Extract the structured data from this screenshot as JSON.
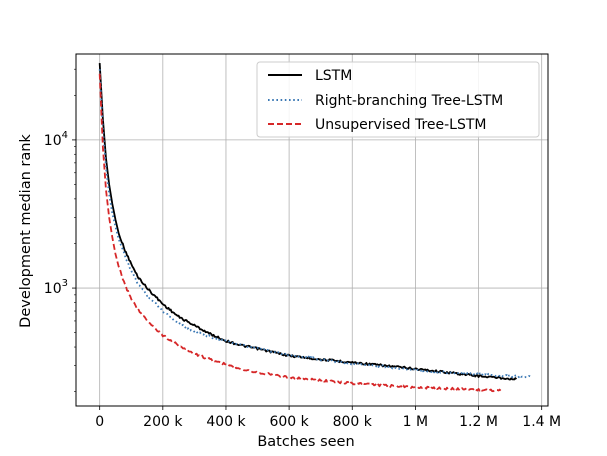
{
  "chart_data": {
    "type": "line",
    "xlabel": "Batches seen",
    "ylabel": "Development median rank",
    "xlim": [
      -75000,
      1420000
    ],
    "ylim": [
      160,
      38000
    ],
    "yscale": "log",
    "grid": true,
    "legend_position": "top-right",
    "x_ticks": [
      {
        "value": 0,
        "label": "0"
      },
      {
        "value": 200000,
        "label": "200 k"
      },
      {
        "value": 400000,
        "label": "400 k"
      },
      {
        "value": 600000,
        "label": "600 k"
      },
      {
        "value": 800000,
        "label": "800 k"
      },
      {
        "value": 1000000,
        "label": "1 M"
      },
      {
        "value": 1200000,
        "label": "1.2 M"
      },
      {
        "value": 1400000,
        "label": "1.4 M"
      }
    ],
    "y_ticks": [
      {
        "value": 1000,
        "base": "10",
        "exp": "3"
      },
      {
        "value": 10000,
        "base": "10",
        "exp": "4"
      }
    ],
    "series": [
      {
        "name": "LSTM",
        "color": "#000000",
        "dash": "solid",
        "x": [
          0,
          10000,
          20000,
          30000,
          40000,
          50000,
          60000,
          80000,
          100000,
          120000,
          150000,
          200000,
          250000,
          300000,
          350000,
          400000,
          450000,
          500000,
          600000,
          700000,
          800000,
          900000,
          1000000,
          1100000,
          1200000,
          1250000,
          1300000,
          1320000
        ],
        "y": [
          33000,
          14000,
          7500,
          5000,
          3700,
          2900,
          2350,
          1800,
          1450,
          1200,
          1000,
          780,
          640,
          560,
          490,
          440,
          410,
          390,
          350,
          330,
          315,
          300,
          285,
          270,
          255,
          250,
          245,
          243
        ]
      },
      {
        "name": "Right-branching Tree-LSTM",
        "color": "#3b78b4",
        "dash": "dotted",
        "x": [
          0,
          10000,
          20000,
          30000,
          40000,
          50000,
          60000,
          80000,
          100000,
          120000,
          150000,
          200000,
          250000,
          300000,
          350000,
          400000,
          450000,
          500000,
          600000,
          700000,
          800000,
          900000,
          1000000,
          1100000,
          1200000,
          1300000,
          1370000
        ],
        "y": [
          30000,
          12000,
          6500,
          4300,
          3200,
          2600,
          2150,
          1650,
          1300,
          1080,
          900,
          700,
          580,
          510,
          470,
          440,
          410,
          390,
          355,
          330,
          310,
          295,
          280,
          270,
          262,
          255,
          250
        ]
      },
      {
        "name": "Unsupervised Tree-LSTM",
        "color": "#d62728",
        "dash": "dashed",
        "x": [
          0,
          10000,
          20000,
          30000,
          40000,
          50000,
          60000,
          80000,
          100000,
          120000,
          150000,
          200000,
          250000,
          300000,
          350000,
          400000,
          450000,
          500000,
          600000,
          700000,
          800000,
          900000,
          1000000,
          1100000,
          1200000,
          1250000,
          1270000
        ],
        "y": [
          28000,
          9000,
          4600,
          3000,
          2200,
          1700,
          1400,
          1050,
          850,
          720,
          600,
          480,
          410,
          360,
          330,
          305,
          285,
          270,
          250,
          238,
          228,
          220,
          214,
          210,
          206,
          204,
          203
        ]
      }
    ]
  }
}
